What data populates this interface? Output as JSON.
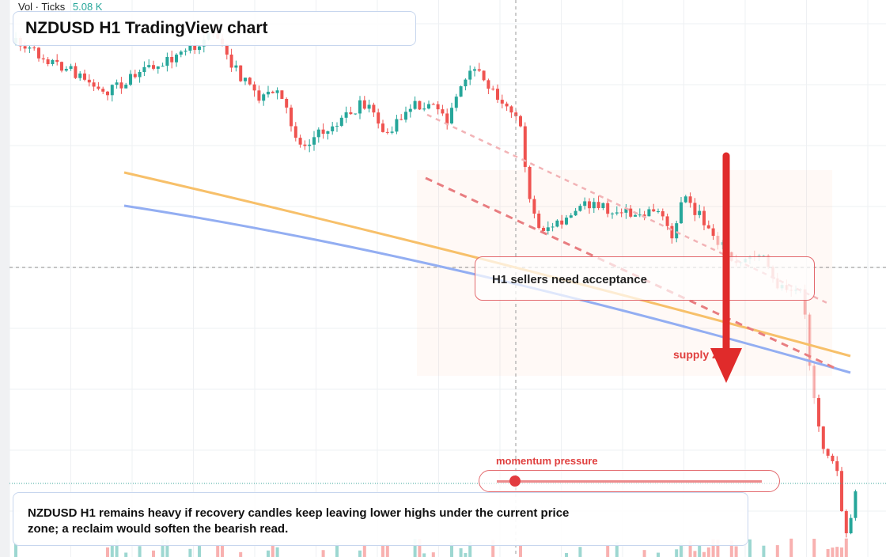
{
  "header": {
    "volume_label": "Vol · Ticks",
    "volume_value": "5.08 K",
    "title": "NZDUSD H1 TradingView chart"
  },
  "annotations": {
    "acceptance": "H1 sellers need acceptance",
    "zone": "supply zone",
    "momentum": "momentum pressure"
  },
  "note": "NZDUSD H1 remains heavy if recovery candles keep leaving lower highs under the current price zone; a reclaim would soften the bearish read."
}
